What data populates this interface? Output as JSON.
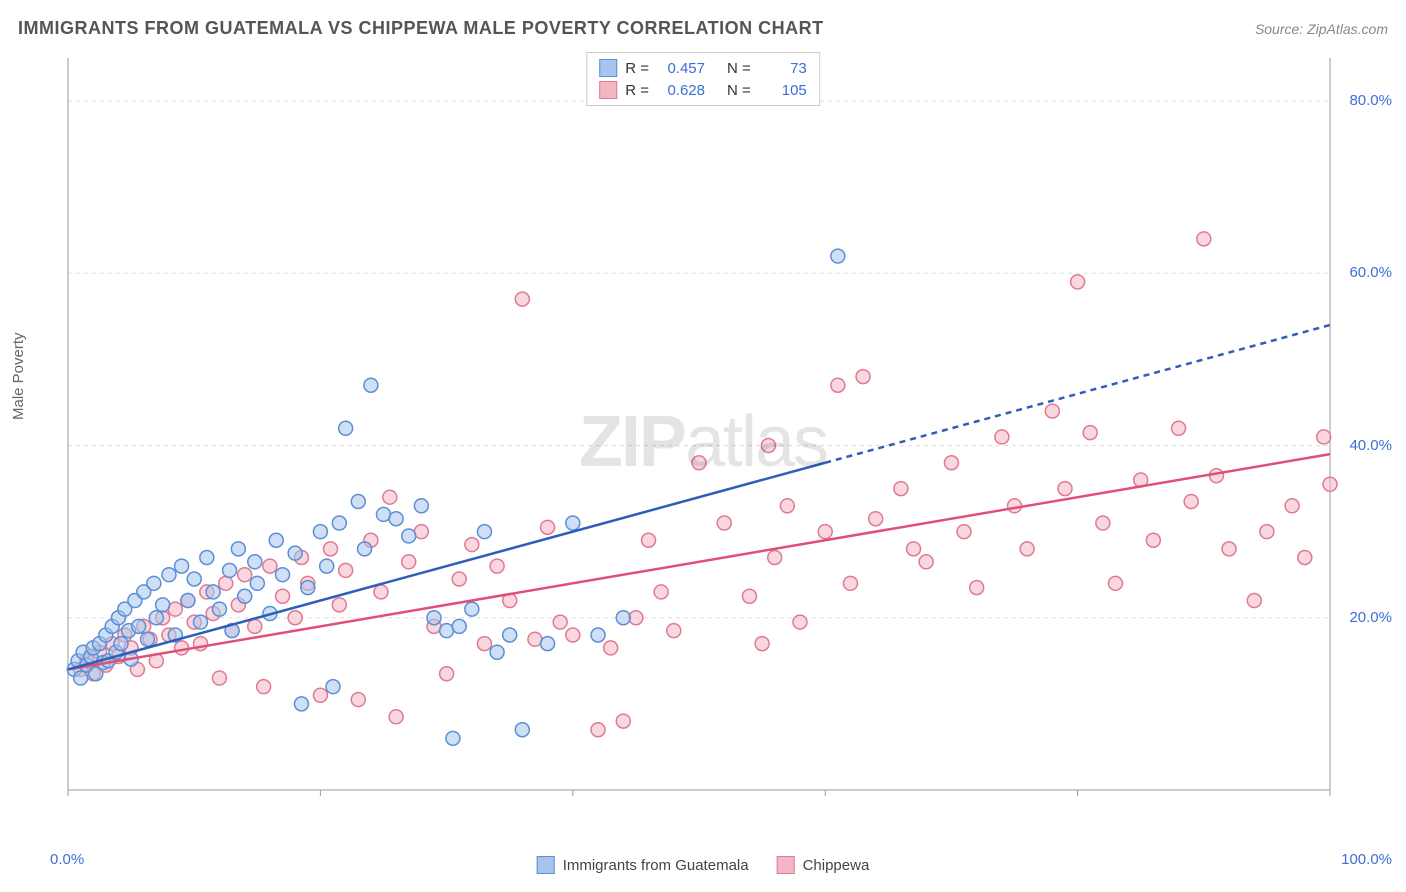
{
  "header": {
    "title": "IMMIGRANTS FROM GUATEMALA VS CHIPPEWA MALE POVERTY CORRELATION CHART",
    "source": "Source: ZipAtlas.com"
  },
  "watermark": {
    "zip": "ZIP",
    "atlas": "atlas"
  },
  "y_axis_label": "Male Poverty",
  "chart": {
    "type": "scatter",
    "xlim": [
      0,
      100
    ],
    "ylim": [
      0,
      85
    ],
    "x_ticks": [
      0,
      20,
      40,
      60,
      80,
      100
    ],
    "y_ticks": [
      20,
      40,
      60,
      80
    ],
    "x_tick_labels": [
      "0.0%",
      "",
      "",
      "",
      "",
      "100.0%"
    ],
    "y_tick_labels": [
      "20.0%",
      "40.0%",
      "60.0%",
      "80.0%"
    ],
    "grid_color": "#dddddd",
    "axis_color": "#999999",
    "tick_label_color": "#3b6fd6",
    "marker_radius": 7,
    "marker_stroke_width": 1.5,
    "background_color": "#ffffff"
  },
  "legend_top": {
    "r_label": "R =",
    "n_label": "N =",
    "series1": {
      "r": "0.457",
      "n": "73"
    },
    "series2": {
      "r": "0.628",
      "n": "105"
    }
  },
  "legend_bottom": {
    "series1_label": "Immigrants from Guatemala",
    "series2_label": "Chippewa"
  },
  "series1": {
    "name": "Immigrants from Guatemala",
    "fill_color": "#a8c4ec",
    "stroke_color": "#5b8fd6",
    "fill_opacity": 0.55,
    "trend": {
      "xrange": [
        0,
        100
      ],
      "yrange": [
        14,
        54
      ],
      "solid_until_x": 60,
      "color": "#2e5fb8",
      "width": 2.5
    },
    "points": [
      [
        0.5,
        14
      ],
      [
        0.8,
        15
      ],
      [
        1,
        13
      ],
      [
        1.2,
        16
      ],
      [
        1.5,
        14.5
      ],
      [
        1.8,
        15.5
      ],
      [
        2,
        16.5
      ],
      [
        2.2,
        13.5
      ],
      [
        2.5,
        17
      ],
      [
        2.8,
        14.8
      ],
      [
        3,
        18
      ],
      [
        3.2,
        15
      ],
      [
        3.5,
        19
      ],
      [
        3.8,
        16
      ],
      [
        4,
        20
      ],
      [
        4.2,
        17
      ],
      [
        4.5,
        21
      ],
      [
        4.8,
        18.5
      ],
      [
        5,
        15.2
      ],
      [
        5.3,
        22
      ],
      [
        5.6,
        19
      ],
      [
        6,
        23
      ],
      [
        6.3,
        17.5
      ],
      [
        6.8,
        24
      ],
      [
        7,
        20
      ],
      [
        7.5,
        21.5
      ],
      [
        8,
        25
      ],
      [
        8.5,
        18
      ],
      [
        9,
        26
      ],
      [
        9.5,
        22
      ],
      [
        10,
        24.5
      ],
      [
        10.5,
        19.5
      ],
      [
        11,
        27
      ],
      [
        11.5,
        23
      ],
      [
        12,
        21
      ],
      [
        12.8,
        25.5
      ],
      [
        13,
        18.5
      ],
      [
        13.5,
        28
      ],
      [
        14,
        22.5
      ],
      [
        14.8,
        26.5
      ],
      [
        15,
        24
      ],
      [
        16,
        20.5
      ],
      [
        16.5,
        29
      ],
      [
        17,
        25
      ],
      [
        18,
        27.5
      ],
      [
        18.5,
        10
      ],
      [
        19,
        23.5
      ],
      [
        20,
        30
      ],
      [
        20.5,
        26
      ],
      [
        21,
        12
      ],
      [
        21.5,
        31
      ],
      [
        22,
        42
      ],
      [
        23,
        33.5
      ],
      [
        23.5,
        28
      ],
      [
        24,
        47
      ],
      [
        25,
        32
      ],
      [
        26,
        31.5
      ],
      [
        27,
        29.5
      ],
      [
        28,
        33
      ],
      [
        29,
        20
      ],
      [
        30,
        18.5
      ],
      [
        30.5,
        6
      ],
      [
        31,
        19
      ],
      [
        32,
        21
      ],
      [
        33,
        30
      ],
      [
        34,
        16
      ],
      [
        35,
        18
      ],
      [
        36,
        7
      ],
      [
        38,
        17
      ],
      [
        40,
        31
      ],
      [
        42,
        18
      ],
      [
        44,
        20
      ],
      [
        61,
        62
      ]
    ]
  },
  "series2": {
    "name": "Chippewa",
    "fill_color": "#f4b6c5",
    "stroke_color": "#e07a94",
    "fill_opacity": 0.55,
    "trend": {
      "xrange": [
        0,
        100
      ],
      "yrange": [
        14,
        39
      ],
      "solid_until_x": 100,
      "color": "#e04f76",
      "width": 2.5
    },
    "points": [
      [
        1,
        14
      ],
      [
        1.5,
        15
      ],
      [
        2,
        13.5
      ],
      [
        2.5,
        16
      ],
      [
        3,
        14.5
      ],
      [
        3.5,
        17
      ],
      [
        4,
        15.5
      ],
      [
        4.5,
        18
      ],
      [
        5,
        16.5
      ],
      [
        5.5,
        14
      ],
      [
        6,
        19
      ],
      [
        6.5,
        17.5
      ],
      [
        7,
        15
      ],
      [
        7.5,
        20
      ],
      [
        8,
        18
      ],
      [
        8.5,
        21
      ],
      [
        9,
        16.5
      ],
      [
        9.5,
        22
      ],
      [
        10,
        19.5
      ],
      [
        10.5,
        17
      ],
      [
        11,
        23
      ],
      [
        11.5,
        20.5
      ],
      [
        12,
        13
      ],
      [
        12.5,
        24
      ],
      [
        13,
        18.5
      ],
      [
        13.5,
        21.5
      ],
      [
        14,
        25
      ],
      [
        14.8,
        19
      ],
      [
        15.5,
        12
      ],
      [
        16,
        26
      ],
      [
        17,
        22.5
      ],
      [
        18,
        20
      ],
      [
        18.5,
        27
      ],
      [
        19,
        24
      ],
      [
        20,
        11
      ],
      [
        20.8,
        28
      ],
      [
        21.5,
        21.5
      ],
      [
        22,
        25.5
      ],
      [
        23,
        10.5
      ],
      [
        24,
        29
      ],
      [
        24.8,
        23
      ],
      [
        25.5,
        34
      ],
      [
        26,
        8.5
      ],
      [
        27,
        26.5
      ],
      [
        28,
        30
      ],
      [
        29,
        19
      ],
      [
        30,
        13.5
      ],
      [
        31,
        24.5
      ],
      [
        32,
        28.5
      ],
      [
        33,
        17
      ],
      [
        34,
        26
      ],
      [
        35,
        22
      ],
      [
        36,
        57
      ],
      [
        37,
        17.5
      ],
      [
        38,
        30.5
      ],
      [
        39,
        19.5
      ],
      [
        40,
        18
      ],
      [
        42,
        7
      ],
      [
        43,
        16.5
      ],
      [
        44,
        8
      ],
      [
        45,
        20
      ],
      [
        46,
        29
      ],
      [
        47,
        23
      ],
      [
        48,
        18.5
      ],
      [
        50,
        38
      ],
      [
        52,
        31
      ],
      [
        54,
        22.5
      ],
      [
        55,
        17
      ],
      [
        55.5,
        40
      ],
      [
        56,
        27
      ],
      [
        57,
        33
      ],
      [
        58,
        19.5
      ],
      [
        60,
        30
      ],
      [
        61,
        47
      ],
      [
        62,
        24
      ],
      [
        63,
        48
      ],
      [
        64,
        31.5
      ],
      [
        66,
        35
      ],
      [
        67,
        28
      ],
      [
        68,
        26.5
      ],
      [
        70,
        38
      ],
      [
        71,
        30
      ],
      [
        72,
        23.5
      ],
      [
        74,
        41
      ],
      [
        75,
        33
      ],
      [
        76,
        28
      ],
      [
        78,
        44
      ],
      [
        79,
        35
      ],
      [
        80,
        59
      ],
      [
        81,
        41.5
      ],
      [
        82,
        31
      ],
      [
        83,
        24
      ],
      [
        85,
        36
      ],
      [
        86,
        29
      ],
      [
        88,
        42
      ],
      [
        89,
        33.5
      ],
      [
        90,
        64
      ],
      [
        91,
        36.5
      ],
      [
        92,
        28
      ],
      [
        94,
        22
      ],
      [
        95,
        30
      ],
      [
        97,
        33
      ],
      [
        98,
        27
      ],
      [
        99.5,
        41
      ],
      [
        100,
        35.5
      ]
    ]
  }
}
